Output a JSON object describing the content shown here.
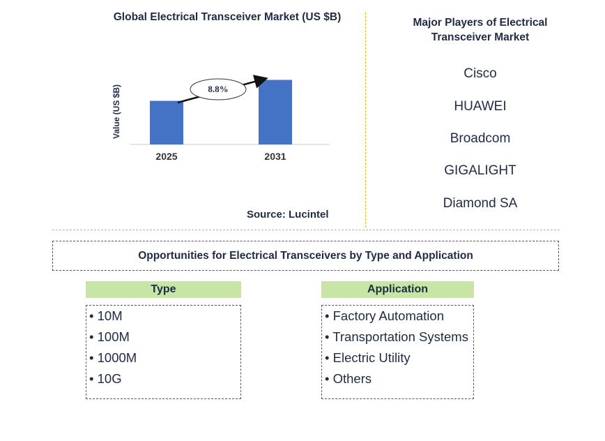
{
  "chart_data": {
    "type": "bar",
    "title": "Global Electrical Transceiver Market (US $B)",
    "categories": [
      "2025",
      "2031"
    ],
    "values": [
      1.0,
      1.48
    ],
    "ylabel": "Value (US $B)",
    "xlabel": "",
    "ylim": [
      0,
      1.6
    ],
    "grid": false,
    "annotations": [
      {
        "text": "8.8%"
      }
    ],
    "bar_color": "#4472c4"
  },
  "source": "Source: Lucintel",
  "players": {
    "title": "Major Players of Electrical Transceiver Market",
    "items": [
      "Cisco",
      "HUAWEI",
      "Broadcom",
      "GIGALIGHT",
      "Diamond SA"
    ]
  },
  "opportunities": {
    "title": "Opportunities for Electrical Transceivers by Type and Application",
    "type": {
      "header": "Type",
      "items": [
        "• 10M",
        "• 100M",
        "• 1000M",
        "• 10G"
      ]
    },
    "application": {
      "header": "Application",
      "items": [
        "• Factory Automation",
        "• Transportation Systems",
        "• Electric Utility",
        "• Others"
      ]
    }
  }
}
